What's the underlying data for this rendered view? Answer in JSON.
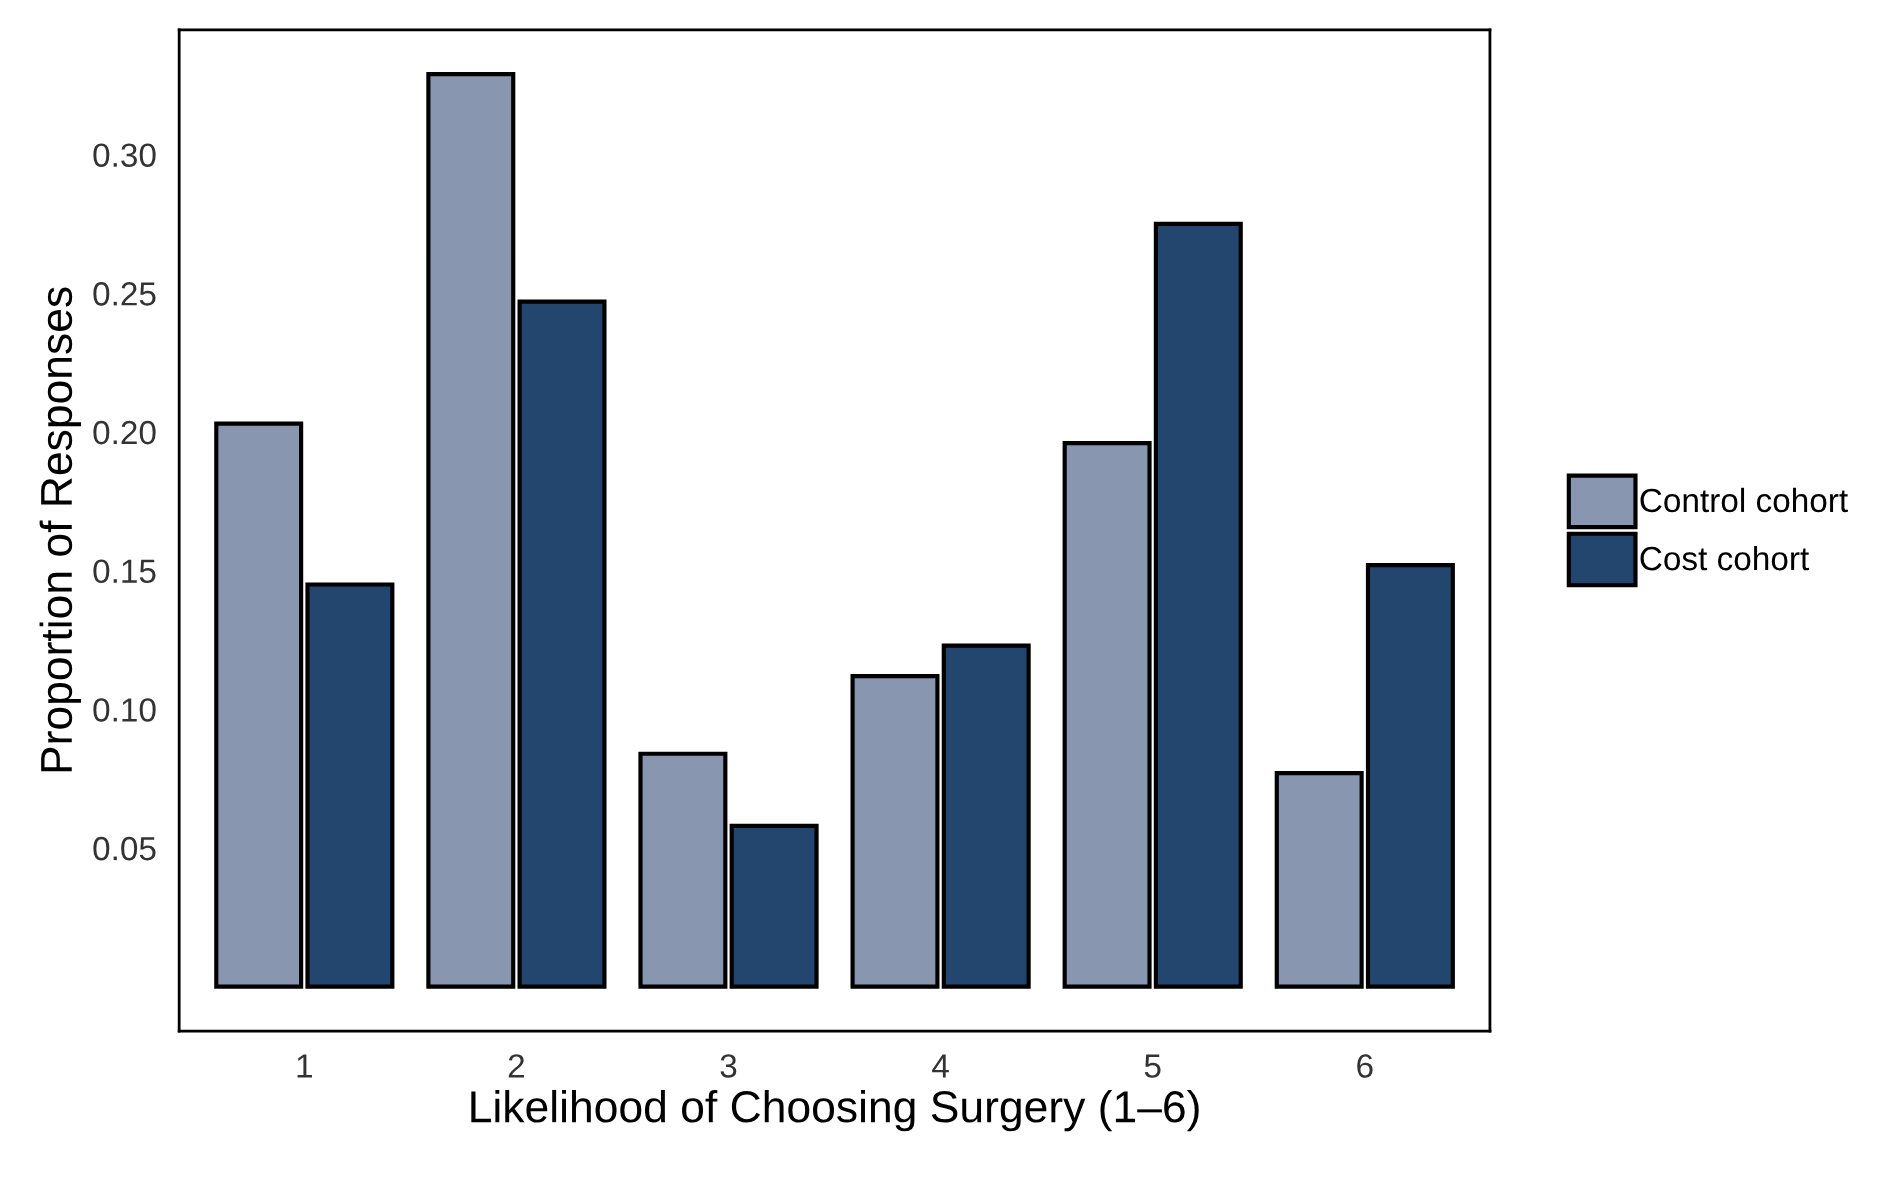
{
  "chart_data": {
    "type": "bar",
    "xlabel": "Likelihood of Choosing Surgery (1–6)",
    "ylabel": "Proportion of Responses",
    "categories": [
      "1",
      "2",
      "3",
      "4",
      "5",
      "6"
    ],
    "series": [
      {
        "name": "Control cohort",
        "color": "#8896b0",
        "values": [
          0.203,
          0.329,
          0.084,
          0.112,
          0.196,
          0.077
        ]
      },
      {
        "name": "Cost cohort",
        "color": "#22466e",
        "values": [
          0.145,
          0.247,
          0.058,
          0.123,
          0.275,
          0.152
        ]
      }
    ],
    "ylim": [
      -0.016,
      0.345
    ],
    "yticks": [
      0.05,
      {
        "value": 0.1,
        "label": "0.10"
      },
      0.15,
      {
        "value": 0.2,
        "label": "0.20"
      },
      0.25,
      {
        "value": 0.3,
        "label": "0.30"
      }
    ],
    "grid": false,
    "legend": "right"
  }
}
